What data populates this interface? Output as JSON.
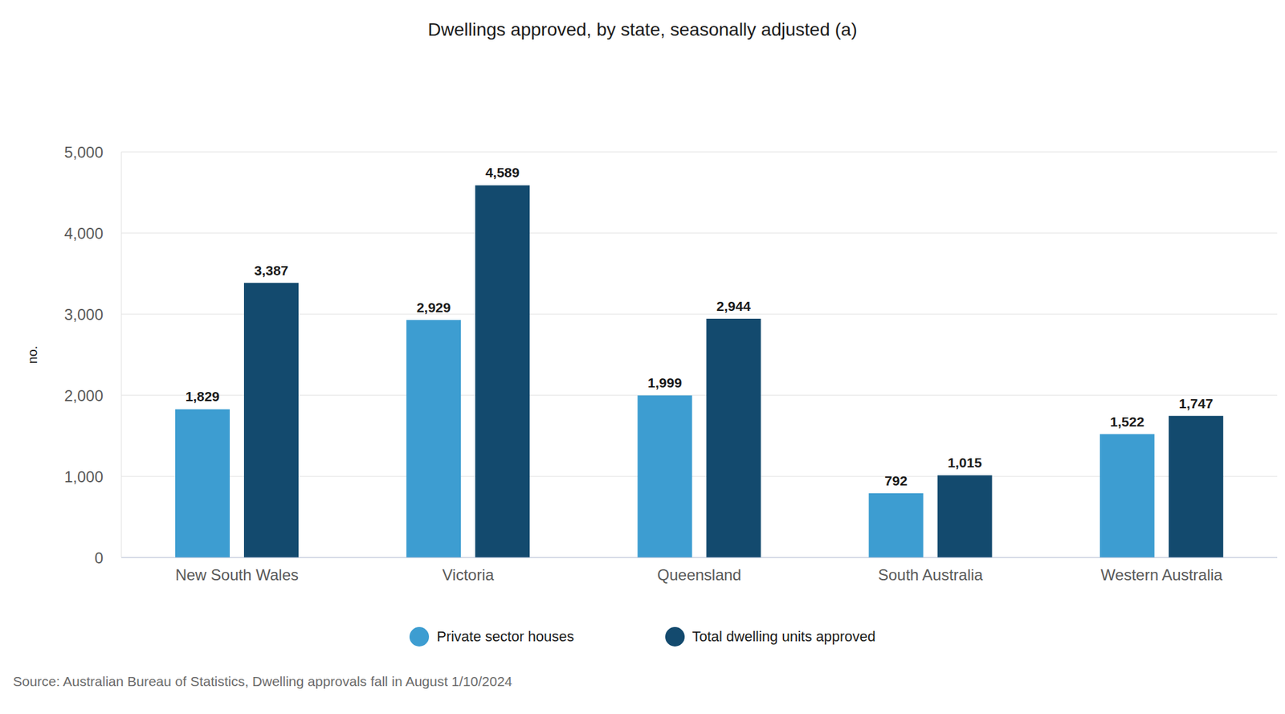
{
  "chart_data": {
    "type": "bar",
    "title": "Dwellings approved, by state, seasonally adjusted (a)",
    "source": "Source: Australian Bureau of Statistics, Dwelling approvals fall in August 1/10/2024",
    "y_label": "no.",
    "categories": [
      "New South Wales",
      "Victoria",
      "Queensland",
      "South Australia",
      "Western Australia"
    ],
    "series": [
      {
        "name": "Private sector houses",
        "color": "#3d9dd1",
        "values": [
          1829,
          2929,
          1999,
          792,
          1522
        ],
        "value_labels": [
          "1,829",
          "2,929",
          "1,999",
          "792",
          "1,522"
        ]
      },
      {
        "name": "Total dwelling units approved",
        "color": "#134a6e",
        "values": [
          3387,
          4589,
          2944,
          1015,
          1747
        ],
        "value_labels": [
          "3,387",
          "4,589",
          "2,944",
          "1,015",
          "1,747"
        ]
      }
    ],
    "ylim": [
      0,
      5000
    ],
    "yticks": [
      0,
      {
        "value": 1000,
        "label": "1,000"
      },
      {
        "value": 2000,
        "label": "2,000"
      },
      {
        "value": 3000,
        "label": "3,000"
      },
      {
        "value": 4000,
        "label": "4,000"
      },
      {
        "value": 5000,
        "label": "5,000"
      }
    ],
    "grid": true,
    "data_labels": true,
    "legend": "bottom"
  }
}
